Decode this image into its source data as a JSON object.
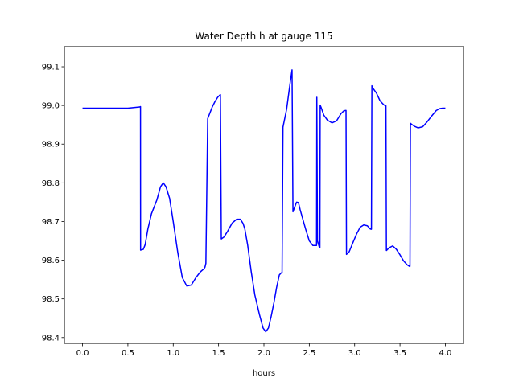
{
  "chart_data": {
    "type": "line",
    "title": "Water Depth h at gauge 115",
    "xlabel": "hours",
    "ylabel": "",
    "xlim": [
      -0.2,
      4.2
    ],
    "ylim": [
      98.385,
      99.152
    ],
    "xticks": [
      0.0,
      0.5,
      1.0,
      1.5,
      2.0,
      2.5,
      3.0,
      3.5,
      4.0
    ],
    "xtick_labels": [
      "0.0",
      "0.5",
      "1.0",
      "1.5",
      "2.0",
      "2.5",
      "3.0",
      "3.5",
      "4.0"
    ],
    "yticks": [
      98.4,
      98.5,
      98.6,
      98.7,
      98.8,
      98.9,
      99.0,
      99.1
    ],
    "ytick_labels": [
      "98.4",
      "98.5",
      "98.6",
      "98.7",
      "98.8",
      "98.9",
      "99.0",
      "99.1"
    ],
    "grid": false,
    "series": [
      {
        "color": "#0000ff",
        "x": [
          0.0,
          0.3,
          0.5,
          0.63,
          0.639,
          0.64,
          0.67,
          0.69,
          0.72,
          0.76,
          0.82,
          0.86,
          0.89,
          0.92,
          0.96,
          1.0,
          1.05,
          1.1,
          1.15,
          1.2,
          1.25,
          1.3,
          1.32,
          1.34,
          1.35,
          1.36,
          1.38,
          1.4,
          1.43,
          1.46,
          1.49,
          1.51,
          1.52,
          1.53,
          1.56,
          1.6,
          1.65,
          1.7,
          1.74,
          1.77,
          1.79,
          1.82,
          1.86,
          1.9,
          1.95,
          1.99,
          2.02,
          2.05,
          2.08,
          2.11,
          2.14,
          2.17,
          2.19,
          2.2,
          2.21,
          2.25,
          2.29,
          2.31,
          2.32,
          2.34,
          2.36,
          2.38,
          2.4,
          2.43,
          2.46,
          2.5,
          2.54,
          2.58,
          2.583,
          2.59,
          2.61,
          2.617,
          2.62,
          2.63,
          2.66,
          2.7,
          2.75,
          2.8,
          2.85,
          2.88,
          2.9,
          2.905,
          2.91,
          2.94,
          2.98,
          3.02,
          3.06,
          3.1,
          3.14,
          3.17,
          3.18,
          3.185,
          3.19,
          3.2,
          3.24,
          3.28,
          3.32,
          3.34,
          3.345,
          3.35,
          3.38,
          3.42,
          3.46,
          3.5,
          3.54,
          3.58,
          3.605,
          3.61,
          3.615,
          3.63,
          3.66,
          3.7,
          3.75,
          3.8,
          3.85,
          3.9,
          3.94,
          3.97,
          4.0
        ],
        "y": [
          98.993,
          98.993,
          98.993,
          98.996,
          98.997,
          98.626,
          98.628,
          98.64,
          98.68,
          98.72,
          98.756,
          98.79,
          98.8,
          98.79,
          98.76,
          98.7,
          98.62,
          98.555,
          98.533,
          98.536,
          98.555,
          98.57,
          98.574,
          98.578,
          98.582,
          98.592,
          98.966,
          98.978,
          98.996,
          99.01,
          99.021,
          99.026,
          99.028,
          98.655,
          98.66,
          98.675,
          98.696,
          98.706,
          98.706,
          98.695,
          98.68,
          98.64,
          98.57,
          98.51,
          98.46,
          98.425,
          98.415,
          98.425,
          98.455,
          98.49,
          98.53,
          98.562,
          98.567,
          98.568,
          98.944,
          98.99,
          99.06,
          99.092,
          98.725,
          98.738,
          98.75,
          98.749,
          98.73,
          98.705,
          98.68,
          98.65,
          98.638,
          98.638,
          99.021,
          98.65,
          98.634,
          98.633,
          99.001,
          98.995,
          98.975,
          98.962,
          98.955,
          98.96,
          98.979,
          98.986,
          98.987,
          98.987,
          98.615,
          98.622,
          98.645,
          98.667,
          98.685,
          98.691,
          98.689,
          98.681,
          98.68,
          98.68,
          99.051,
          99.045,
          99.032,
          99.012,
          99.002,
          98.999,
          98.999,
          98.625,
          98.632,
          98.637,
          98.628,
          98.614,
          98.598,
          98.588,
          98.584,
          98.584,
          98.954,
          98.951,
          98.946,
          98.942,
          98.945,
          98.958,
          98.973,
          98.987,
          98.992,
          98.993,
          98.993
        ]
      }
    ]
  }
}
